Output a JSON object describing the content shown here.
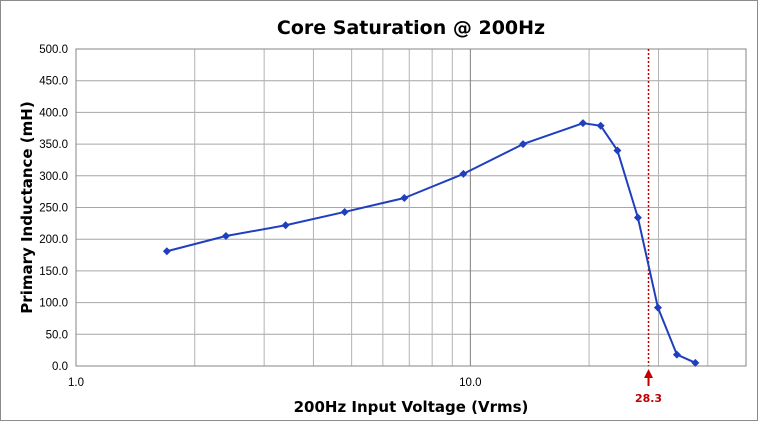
{
  "chart_data": {
    "type": "line",
    "title": "Core Saturation @ 200Hz",
    "xlabel": "200Hz Input Voltage (Vrms)",
    "ylabel": "Primary Inductance (mH)",
    "x_scale": "log",
    "xlim": [
      1.0,
      50.0
    ],
    "ylim": [
      0.0,
      500.0
    ],
    "x_tick_labels": [
      "1.0",
      "10.0"
    ],
    "y_tick_labels": [
      "0.0",
      "50.0",
      "100.0",
      "150.0",
      "200.0",
      "250.0",
      "300.0",
      "350.0",
      "400.0",
      "450.0",
      "500.0"
    ],
    "grid": true,
    "legend": "none",
    "series": [
      {
        "color": "#1f3fbf",
        "x": [
          1.7,
          2.4,
          3.4,
          4.8,
          6.8,
          9.6,
          13.6,
          19.3,
          21.4,
          23.6,
          26.6,
          29.9,
          33.4,
          37.2
        ],
        "y": [
          181,
          205,
          222,
          243,
          265,
          303,
          350,
          383,
          379,
          340,
          234,
          92,
          18,
          5
        ]
      }
    ],
    "annotation": {
      "x": 28.3,
      "label": "28.3",
      "color": "#c00000"
    }
  }
}
